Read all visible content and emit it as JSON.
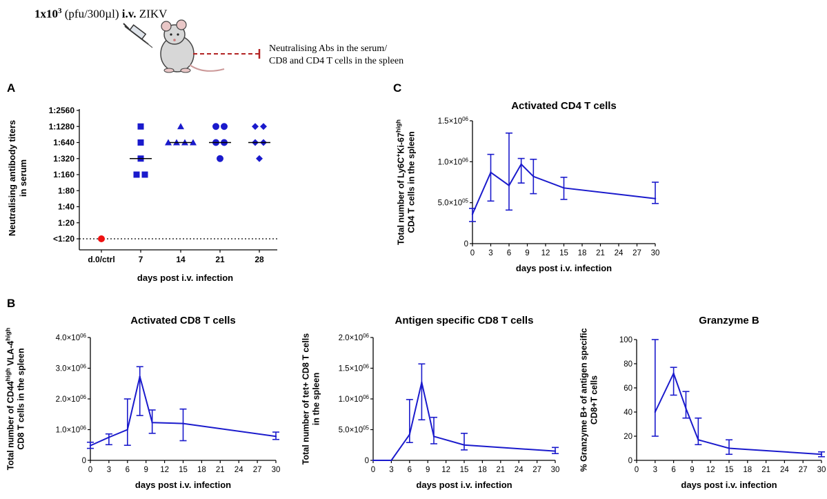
{
  "header": {
    "dose_bold": "1x10",
    "dose_exp": "3",
    "dose_unit": " (pfu/300µl) ",
    "route": "i.v.",
    "virus": " ZIKV",
    "note_line1": "Neutralising Abs in the serum/",
    "note_line2": "CD8 and CD4 T cells in the spleen"
  },
  "panels": {
    "A": "A",
    "B": "B",
    "C": "C"
  },
  "chart_data": [
    {
      "id": "A",
      "type": "scatter",
      "title": "",
      "xlabel": "days post i.v. infection",
      "ylabel_line1": "Neutralising antibody titers",
      "ylabel_line2": "in serum",
      "categories": [
        "d.0/ctrl",
        "7",
        "14",
        "21",
        "28"
      ],
      "y_levels": [
        "<1:20",
        "1:20",
        "1:40",
        "1:80",
        "1:160",
        "1:320",
        "1:640",
        "1:1280",
        "1:2560"
      ],
      "points": [
        {
          "cat": 0,
          "level": 0,
          "marker": "circle",
          "color": "#ee1111"
        },
        {
          "cat": 1,
          "level": 7,
          "marker": "square"
        },
        {
          "cat": 1,
          "level": 6,
          "marker": "square"
        },
        {
          "cat": 1,
          "level": 5,
          "marker": "square"
        },
        {
          "cat": 1,
          "level": 4,
          "marker": "square"
        },
        {
          "cat": 1,
          "level": 4,
          "marker": "square"
        },
        {
          "cat": 2,
          "level": 7,
          "marker": "triangle"
        },
        {
          "cat": 2,
          "level": 6,
          "marker": "triangle"
        },
        {
          "cat": 2,
          "level": 6,
          "marker": "triangle"
        },
        {
          "cat": 2,
          "level": 6,
          "marker": "triangle"
        },
        {
          "cat": 2,
          "level": 6,
          "marker": "triangle"
        },
        {
          "cat": 3,
          "level": 7,
          "marker": "circle"
        },
        {
          "cat": 3,
          "level": 7,
          "marker": "circle"
        },
        {
          "cat": 3,
          "level": 6,
          "marker": "circle"
        },
        {
          "cat": 3,
          "level": 6,
          "marker": "circle"
        },
        {
          "cat": 3,
          "level": 5,
          "marker": "circle"
        },
        {
          "cat": 4,
          "level": 7,
          "marker": "diamond"
        },
        {
          "cat": 4,
          "level": 7,
          "marker": "diamond"
        },
        {
          "cat": 4,
          "level": 6,
          "marker": "diamond"
        },
        {
          "cat": 4,
          "level": 6,
          "marker": "diamond"
        },
        {
          "cat": 4,
          "level": 5,
          "marker": "diamond"
        }
      ],
      "medians": [
        null,
        5,
        6,
        6,
        6
      ],
      "threshold_level": 0
    },
    {
      "id": "C",
      "type": "line",
      "title": "Activated CD4 T cells",
      "xlabel": "days post i.v. infection",
      "ylabel_line1": "Total number of Ly6C+Ki-67high",
      "ylabel_line2": "CD4 T cells in the spleen",
      "x_ticks": [
        0,
        3,
        6,
        9,
        12,
        15,
        18,
        21,
        24,
        27,
        30
      ],
      "y_ticks": [
        {
          "v": 0,
          "m": "0"
        },
        {
          "v": 500000,
          "m": "5.0×10",
          "e": "05"
        },
        {
          "v": 1000000,
          "m": "1.0×10",
          "e": "06"
        },
        {
          "v": 1500000,
          "m": "1.5×10",
          "e": "06"
        }
      ],
      "ylim": [
        0,
        1500000
      ],
      "xlim": [
        0,
        30
      ],
      "x": [
        0,
        3,
        6,
        8,
        10,
        15,
        30
      ],
      "y": [
        360000,
        870000,
        710000,
        970000,
        820000,
        680000,
        550000
      ],
      "err_low": [
        270000,
        520000,
        410000,
        740000,
        610000,
        540000,
        490000
      ],
      "err_high": [
        430000,
        1090000,
        1350000,
        1040000,
        1030000,
        810000,
        750000
      ]
    },
    {
      "id": "B1",
      "type": "line",
      "title": "Activated CD8 T cells",
      "xlabel": "days post i.v. infection",
      "ylabel_line1": "Total number of CD44high VLA-4high",
      "ylabel_line2": "CD8 T cells in the spleen",
      "x_ticks": [
        0,
        3,
        6,
        9,
        12,
        15,
        18,
        21,
        24,
        27,
        30
      ],
      "y_ticks": [
        {
          "v": 0,
          "m": "0"
        },
        {
          "v": 1000000,
          "m": "1.0×10",
          "e": "06"
        },
        {
          "v": 2000000,
          "m": "2.0×10",
          "e": "06"
        },
        {
          "v": 3000000,
          "m": "3.0×10",
          "e": "06"
        },
        {
          "v": 4000000,
          "m": "4.0×10",
          "e": "06"
        }
      ],
      "ylim": [
        0,
        4000000
      ],
      "xlim": [
        0,
        30
      ],
      "x": [
        0,
        3,
        6,
        8,
        10,
        15,
        30
      ],
      "y": [
        480000,
        750000,
        1000000,
        2730000,
        1230000,
        1200000,
        780000
      ],
      "err_low": [
        390000,
        510000,
        490000,
        1460000,
        880000,
        640000,
        680000
      ],
      "err_high": [
        590000,
        860000,
        2000000,
        3050000,
        1640000,
        1670000,
        920000
      ]
    },
    {
      "id": "B2",
      "type": "line",
      "title": "Antigen specific CD8 T cells",
      "xlabel": "days post i.v. infection",
      "ylabel_line1": "Total number of tet+ CD8 T cells",
      "ylabel_line2": "in the spleen",
      "x_ticks": [
        0,
        3,
        6,
        9,
        12,
        15,
        18,
        21,
        24,
        27,
        30
      ],
      "y_ticks": [
        {
          "v": 0,
          "m": "0"
        },
        {
          "v": 500000,
          "m": "5.0×10",
          "e": "05"
        },
        {
          "v": 1000000,
          "m": "1.0×10",
          "e": "06"
        },
        {
          "v": 1500000,
          "m": "1.5×10",
          "e": "06"
        },
        {
          "v": 2000000,
          "m": "2.0×10",
          "e": "06"
        }
      ],
      "ylim": [
        0,
        2000000
      ],
      "xlim": [
        0,
        30
      ],
      "x": [
        0,
        3,
        6,
        8,
        10,
        15,
        30
      ],
      "y": [
        0,
        0,
        420000,
        1270000,
        390000,
        250000,
        150000
      ],
      "err_low": [
        0,
        0,
        290000,
        660000,
        270000,
        170000,
        110000
      ],
      "err_high": [
        0,
        0,
        990000,
        1570000,
        700000,
        440000,
        210000
      ]
    },
    {
      "id": "B3",
      "type": "line",
      "title": "Granzyme B",
      "xlabel": "days post i.v. infection",
      "ylabel_line1": "% Granzyme B+ of antigen specific",
      "ylabel_line2": "CD8+T cells",
      "x_ticks": [
        0,
        3,
        6,
        9,
        12,
        15,
        18,
        21,
        24,
        27,
        30
      ],
      "y_ticks": [
        {
          "v": 0,
          "m": "0"
        },
        {
          "v": 20,
          "m": "20"
        },
        {
          "v": 40,
          "m": "40"
        },
        {
          "v": 60,
          "m": "60"
        },
        {
          "v": 80,
          "m": "80"
        },
        {
          "v": 100,
          "m": "100"
        }
      ],
      "ylim": [
        0,
        100
      ],
      "xlim": [
        0,
        30
      ],
      "x": [
        3,
        6,
        8,
        10,
        15,
        30
      ],
      "y": [
        40,
        72,
        43,
        17,
        10,
        5
      ],
      "err_low": [
        20,
        54,
        35,
        13,
        5,
        3
      ],
      "err_high": [
        100,
        77,
        57,
        35,
        17,
        7
      ]
    }
  ]
}
